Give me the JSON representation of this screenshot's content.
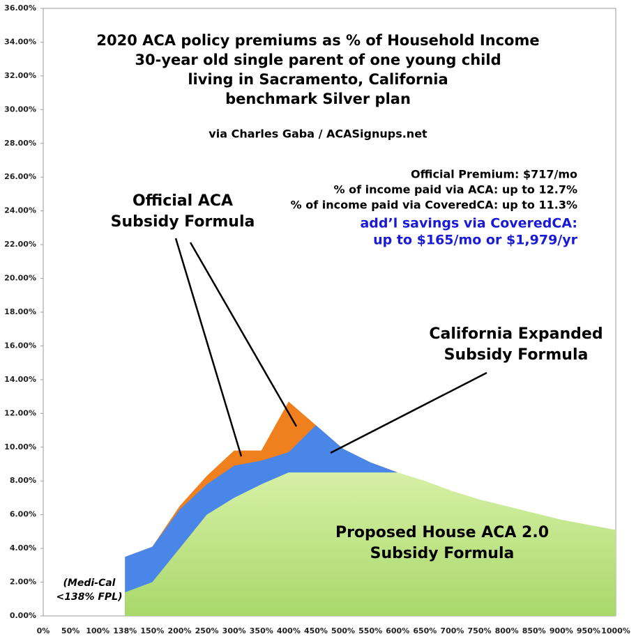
{
  "chart_data": {
    "type": "area",
    "title": [
      "2020 ACA policy premiums as % of Household Income",
      "30-year old single parent of one young child",
      "living in Sacramento, California",
      "benchmark Silver plan"
    ],
    "subtitle": "via Charles Gaba / ACASignups.net",
    "info": [
      "Official Premium: $717/mo",
      "% of income paid via ACA: up to 12.7%",
      "% of income paid via CoveredCA: up to 11.3%"
    ],
    "highlight": [
      "add’l savings via CoveredCA:",
      "up to $165/mo or $1,979/yr"
    ],
    "annotations": [
      [
        "Official ACA",
        "Subsidy Formula"
      ],
      [
        "California Expanded",
        "Subsidy Formula"
      ],
      [
        "Proposed House ACA 2.0",
        "Subsidy Formula"
      ],
      [
        "(Medi-Cal",
        "<138% FPL)"
      ]
    ],
    "categories": [
      "0%",
      "50%",
      "100%",
      "138%",
      "150%",
      "200%",
      "250%",
      "300%",
      "350%",
      "400%",
      "450%",
      "500%",
      "550%",
      "600%",
      "650%",
      "700%",
      "750%",
      "800%",
      "850%",
      "900%",
      "950%",
      "1000%"
    ],
    "series": [
      {
        "color": "#f07f1e",
        "values": [
          null,
          null,
          null,
          3.5,
          4.1,
          6.5,
          8.3,
          9.8,
          9.8,
          12.7,
          11.3,
          9.9,
          9.1,
          8.5,
          null,
          null,
          null,
          null,
          null,
          null,
          null,
          null
        ]
      },
      {
        "color": "#4a86e8",
        "values": [
          null,
          null,
          null,
          3.5,
          4.1,
          6.3,
          7.8,
          8.9,
          9.2,
          9.7,
          11.3,
          9.9,
          9.1,
          8.5,
          null,
          null,
          null,
          null,
          null,
          null,
          null,
          null
        ]
      },
      {
        "color": "#c4e58e",
        "values": [
          null,
          null,
          null,
          1.4,
          2.0,
          4.0,
          6.0,
          7.0,
          7.8,
          8.5,
          8.5,
          8.5,
          8.5,
          8.5,
          8.0,
          7.4,
          6.9,
          6.5,
          6.1,
          5.7,
          5.4,
          5.1
        ]
      }
    ],
    "ylim": [
      0,
      36
    ],
    "yticks": [
      {
        "value": 0,
        "label": "0.00%"
      },
      {
        "value": 2,
        "label": "2.00%"
      },
      {
        "value": 4,
        "label": "4.00%"
      },
      {
        "value": 6,
        "label": "6.00%"
      },
      {
        "value": 8,
        "label": "8.00%"
      },
      {
        "value": 10,
        "label": "10.00%"
      },
      {
        "value": 12,
        "label": "12.00%"
      },
      {
        "value": 14,
        "label": "14.00%"
      },
      {
        "value": 16,
        "label": "16.00%"
      },
      {
        "value": 18,
        "label": "18.00%"
      },
      {
        "value": 20,
        "label": "20.00%"
      },
      {
        "value": 22,
        "label": "22.00%"
      },
      {
        "value": 24,
        "label": "24.00%"
      },
      {
        "value": 26,
        "label": "26.00%"
      },
      {
        "value": 28,
        "label": "28.00%"
      },
      {
        "value": 30,
        "label": "30.00%"
      },
      {
        "value": 32,
        "label": "32.00%"
      },
      {
        "value": 34,
        "label": "34.00%"
      },
      {
        "value": 36,
        "label": "36.00%"
      }
    ]
  }
}
